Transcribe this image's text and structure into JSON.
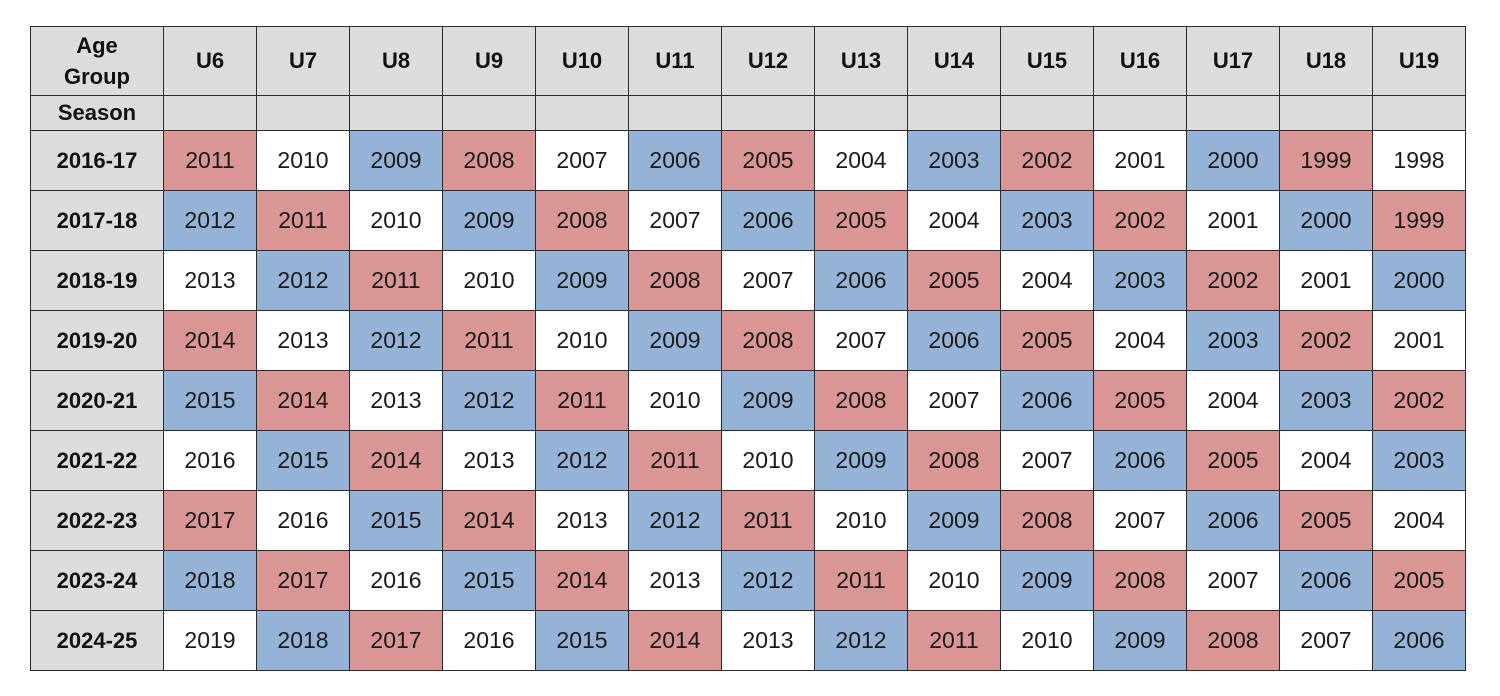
{
  "header": {
    "corner_line1": "Age",
    "corner_line2": "Group",
    "season_label": "Season",
    "age_groups": [
      "U6",
      "U7",
      "U8",
      "U9",
      "U10",
      "U11",
      "U12",
      "U13",
      "U14",
      "U15",
      "U16",
      "U17",
      "U18",
      "U19"
    ]
  },
  "colors": {
    "red": "#d99694",
    "blue": "#95b3d7",
    "white": "#ffffff",
    "header_gray": "#dcdcdc"
  },
  "rows": [
    {
      "season": "2016-17",
      "years": [
        "2011",
        "2010",
        "2009",
        "2008",
        "2007",
        "2006",
        "2005",
        "2004",
        "2003",
        "2002",
        "2001",
        "2000",
        "1999",
        "1998"
      ],
      "colors": [
        "red",
        "white",
        "blue",
        "red",
        "white",
        "blue",
        "red",
        "white",
        "blue",
        "red",
        "white",
        "blue",
        "red",
        "white"
      ]
    },
    {
      "season": "2017-18",
      "years": [
        "2012",
        "2011",
        "2010",
        "2009",
        "2008",
        "2007",
        "2006",
        "2005",
        "2004",
        "2003",
        "2002",
        "2001",
        "2000",
        "1999"
      ],
      "colors": [
        "blue",
        "red",
        "white",
        "blue",
        "red",
        "white",
        "blue",
        "red",
        "white",
        "blue",
        "red",
        "white",
        "blue",
        "red"
      ]
    },
    {
      "season": "2018-19",
      "years": [
        "2013",
        "2012",
        "2011",
        "2010",
        "2009",
        "2008",
        "2007",
        "2006",
        "2005",
        "2004",
        "2003",
        "2002",
        "2001",
        "2000"
      ],
      "colors": [
        "white",
        "blue",
        "red",
        "white",
        "blue",
        "red",
        "white",
        "blue",
        "red",
        "white",
        "blue",
        "red",
        "white",
        "blue"
      ]
    },
    {
      "season": "2019-20",
      "years": [
        "2014",
        "2013",
        "2012",
        "2011",
        "2010",
        "2009",
        "2008",
        "2007",
        "2006",
        "2005",
        "2004",
        "2003",
        "2002",
        "2001"
      ],
      "colors": [
        "red",
        "white",
        "blue",
        "red",
        "white",
        "blue",
        "red",
        "white",
        "blue",
        "red",
        "white",
        "blue",
        "red",
        "white"
      ]
    },
    {
      "season": "2020-21",
      "years": [
        "2015",
        "2014",
        "2013",
        "2012",
        "2011",
        "2010",
        "2009",
        "2008",
        "2007",
        "2006",
        "2005",
        "2004",
        "2003",
        "2002"
      ],
      "colors": [
        "blue",
        "red",
        "white",
        "blue",
        "red",
        "white",
        "blue",
        "red",
        "white",
        "blue",
        "red",
        "white",
        "blue",
        "red"
      ]
    },
    {
      "season": "2021-22",
      "years": [
        "2016",
        "2015",
        "2014",
        "2013",
        "2012",
        "2011",
        "2010",
        "2009",
        "2008",
        "2007",
        "2006",
        "2005",
        "2004",
        "2003"
      ],
      "colors": [
        "white",
        "blue",
        "red",
        "white",
        "blue",
        "red",
        "white",
        "blue",
        "red",
        "white",
        "blue",
        "red",
        "white",
        "blue"
      ]
    },
    {
      "season": "2022-23",
      "years": [
        "2017",
        "2016",
        "2015",
        "2014",
        "2013",
        "2012",
        "2011",
        "2010",
        "2009",
        "2008",
        "2007",
        "2006",
        "2005",
        "2004"
      ],
      "colors": [
        "red",
        "white",
        "blue",
        "red",
        "white",
        "blue",
        "red",
        "white",
        "blue",
        "red",
        "white",
        "blue",
        "red",
        "white"
      ]
    },
    {
      "season": "2023-24",
      "years": [
        "2018",
        "2017",
        "2016",
        "2015",
        "2014",
        "2013",
        "2012",
        "2011",
        "2010",
        "2009",
        "2008",
        "2007",
        "2006",
        "2005"
      ],
      "colors": [
        "blue",
        "red",
        "white",
        "blue",
        "red",
        "white",
        "blue",
        "red",
        "white",
        "blue",
        "red",
        "white",
        "blue",
        "red"
      ]
    },
    {
      "season": "2024-25",
      "years": [
        "2019",
        "2018",
        "2017",
        "2016",
        "2015",
        "2014",
        "2013",
        "2012",
        "2011",
        "2010",
        "2009",
        "2008",
        "2007",
        "2006"
      ],
      "colors": [
        "white",
        "blue",
        "red",
        "white",
        "blue",
        "red",
        "white",
        "blue",
        "red",
        "white",
        "blue",
        "red",
        "white",
        "blue"
      ]
    }
  ]
}
